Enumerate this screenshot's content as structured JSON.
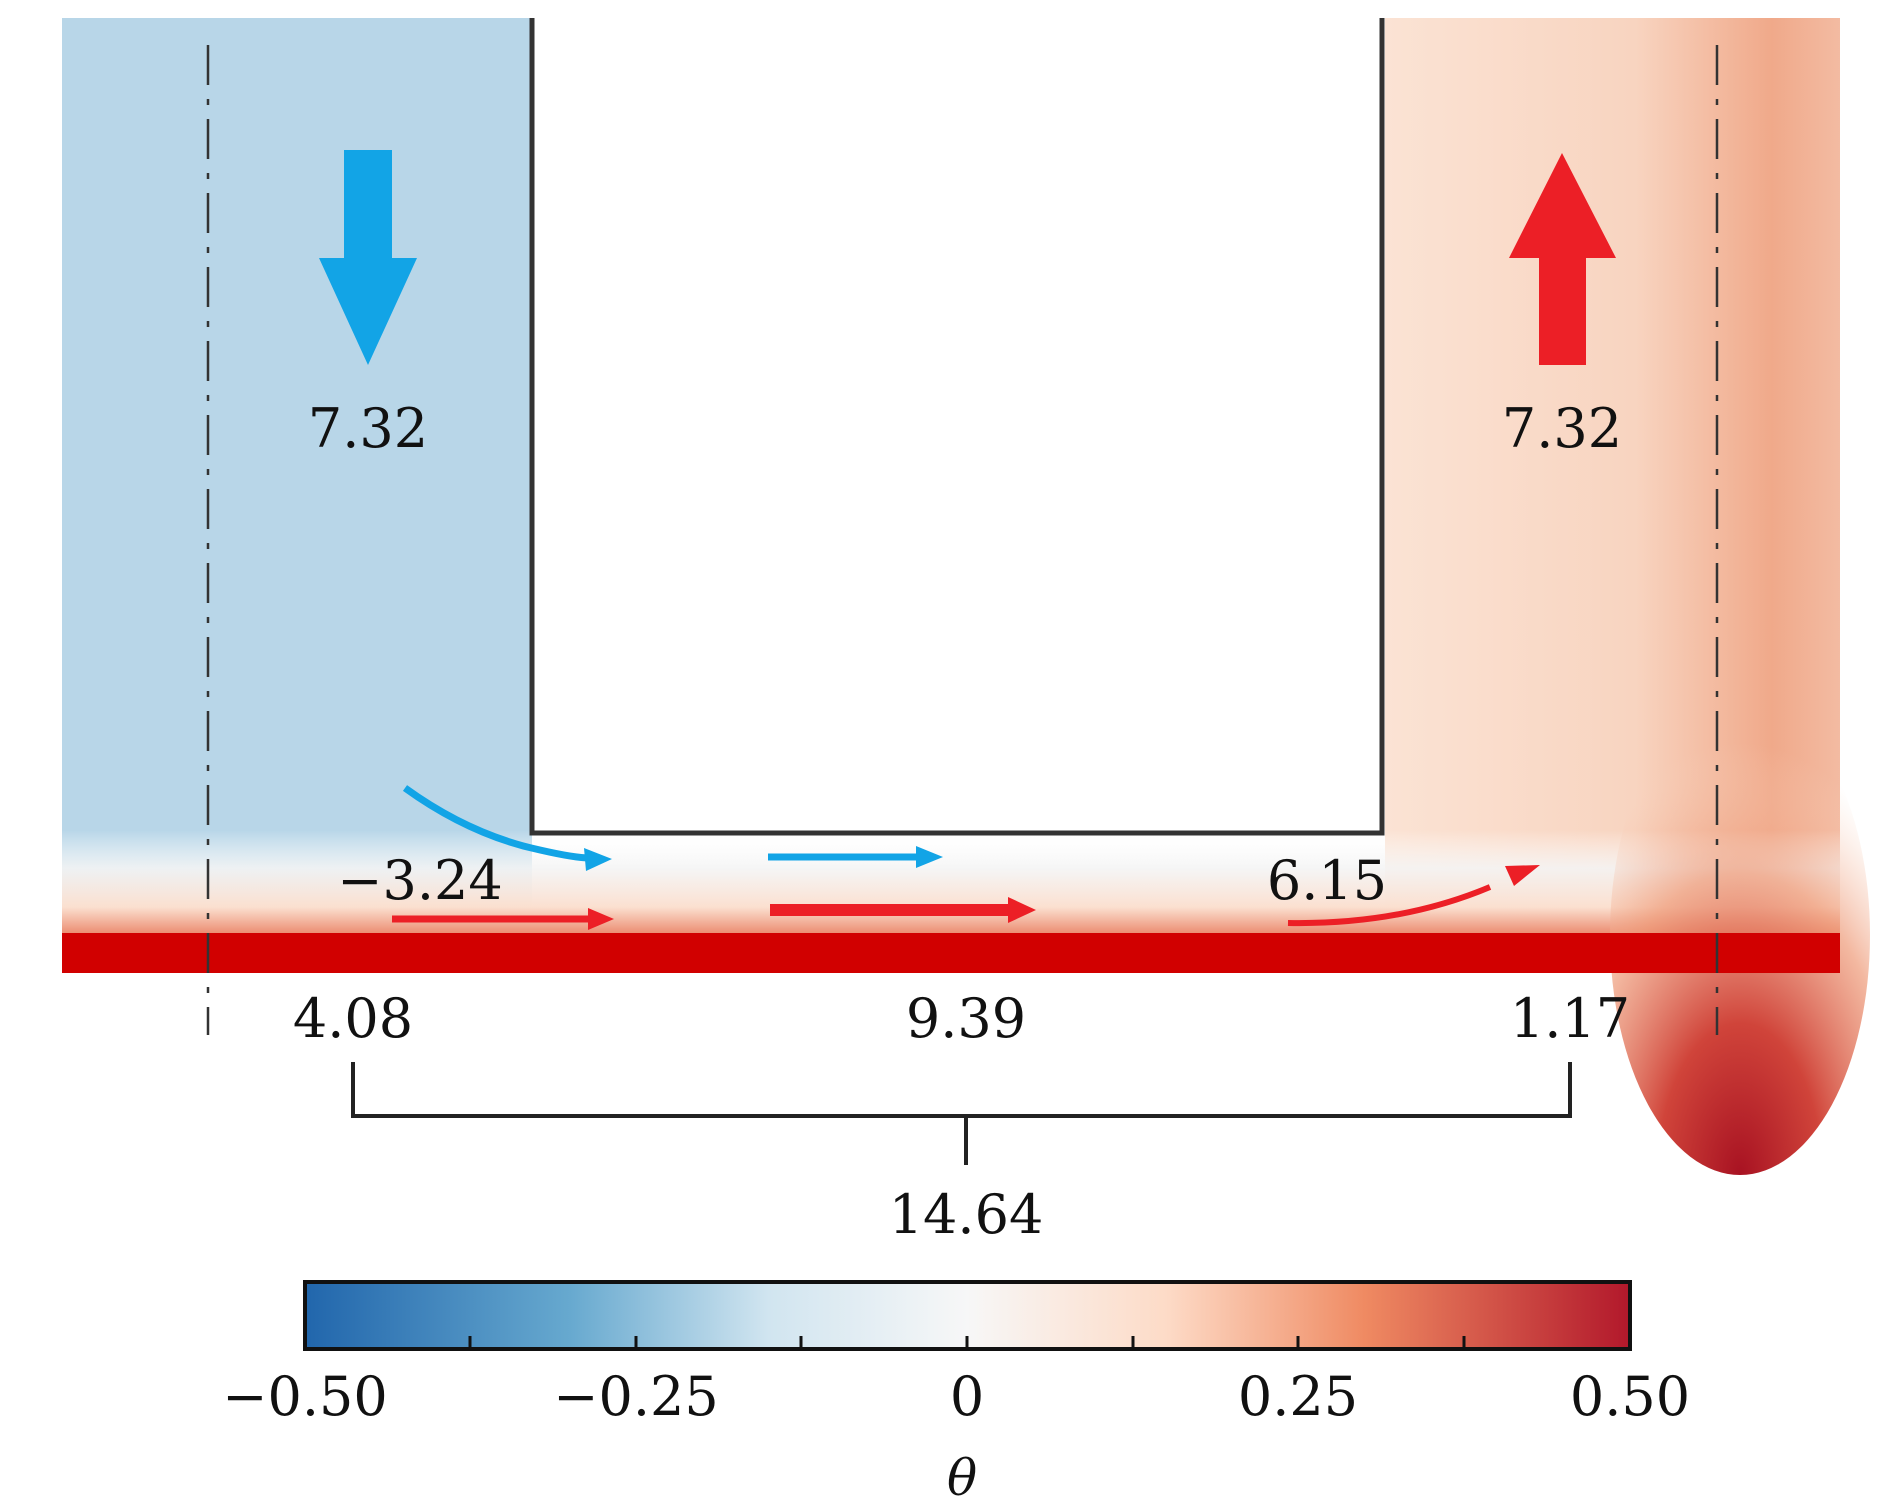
{
  "colors": {
    "cold_fill": "#b8d6e8",
    "hot_fill_light": "#f9dccb",
    "hot_fill_strong": "#ed9a78",
    "heated_bottom": "#d10000",
    "cold_arrow": "#12a4e6",
    "hot_arrow": "#ec1f26",
    "outline": "#333333"
  },
  "flow_labels": {
    "down_left": "7.32",
    "up_right": "7.32",
    "left_return": "−3.24",
    "right_return": "6.15",
    "bottom_left": "4.08",
    "bottom_mid": "9.39",
    "bottom_right": "1.17",
    "bottom_total": "14.64"
  },
  "colorbar": {
    "ticks": [
      "−0.50",
      "−0.25",
      "0",
      "0.25",
      "0.50"
    ],
    "label": "θ"
  },
  "icons": [
    "down-arrow-icon",
    "up-arrow-icon",
    "flow-arrow-icon"
  ]
}
